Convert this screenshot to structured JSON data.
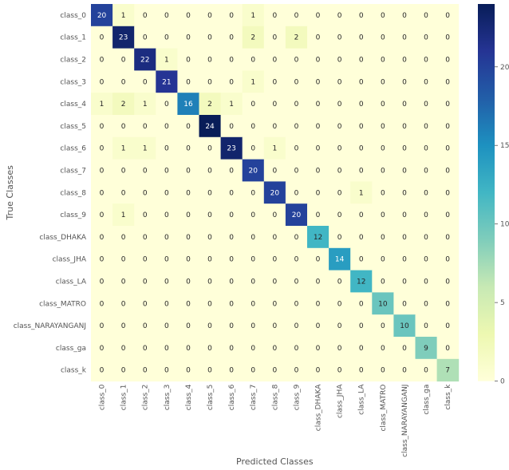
{
  "chart_data": {
    "type": "heatmap",
    "xlabel": "Predicted Classes",
    "ylabel": "True Classes",
    "x_categories": [
      "class_0",
      "class_1",
      "class_2",
      "class_3",
      "class_4",
      "class_5",
      "class_6",
      "class_7",
      "class_8",
      "class_9",
      "class_DHAKA",
      "class_JHA",
      "class_LA",
      "class_MATRO",
      "class_NARAYANGANJ",
      "class_ga",
      "class_k"
    ],
    "y_categories": [
      "class_0",
      "class_1",
      "class_2",
      "class_3",
      "class_4",
      "class_5",
      "class_6",
      "class_7",
      "class_8",
      "class_9",
      "class_DHAKA",
      "class_JHA",
      "class_LA",
      "class_MATRO",
      "class_NARAYANGANJ",
      "class_ga",
      "class_k"
    ],
    "values": [
      [
        20,
        1,
        0,
        0,
        0,
        0,
        0,
        1,
        0,
        0,
        0,
        0,
        0,
        0,
        0,
        0,
        0
      ],
      [
        0,
        23,
        0,
        0,
        0,
        0,
        0,
        2,
        0,
        2,
        0,
        0,
        0,
        0,
        0,
        0,
        0
      ],
      [
        0,
        0,
        22,
        1,
        0,
        0,
        0,
        0,
        0,
        0,
        0,
        0,
        0,
        0,
        0,
        0,
        0
      ],
      [
        0,
        0,
        0,
        21,
        0,
        0,
        0,
        1,
        0,
        0,
        0,
        0,
        0,
        0,
        0,
        0,
        0
      ],
      [
        1,
        2,
        1,
        0,
        16,
        2,
        1,
        0,
        0,
        0,
        0,
        0,
        0,
        0,
        0,
        0,
        0
      ],
      [
        0,
        0,
        0,
        0,
        0,
        24,
        0,
        0,
        0,
        0,
        0,
        0,
        0,
        0,
        0,
        0,
        0
      ],
      [
        0,
        1,
        1,
        0,
        0,
        0,
        23,
        0,
        1,
        0,
        0,
        0,
        0,
        0,
        0,
        0,
        0
      ],
      [
        0,
        0,
        0,
        0,
        0,
        0,
        0,
        20,
        0,
        0,
        0,
        0,
        0,
        0,
        0,
        0,
        0
      ],
      [
        0,
        0,
        0,
        0,
        0,
        0,
        0,
        0,
        20,
        0,
        0,
        0,
        1,
        0,
        0,
        0,
        0
      ],
      [
        0,
        1,
        0,
        0,
        0,
        0,
        0,
        0,
        0,
        20,
        0,
        0,
        0,
        0,
        0,
        0,
        0
      ],
      [
        0,
        0,
        0,
        0,
        0,
        0,
        0,
        0,
        0,
        0,
        12,
        0,
        0,
        0,
        0,
        0,
        0
      ],
      [
        0,
        0,
        0,
        0,
        0,
        0,
        0,
        0,
        0,
        0,
        0,
        14,
        0,
        0,
        0,
        0,
        0
      ],
      [
        0,
        0,
        0,
        0,
        0,
        0,
        0,
        0,
        0,
        0,
        0,
        0,
        12,
        0,
        0,
        0,
        0
      ],
      [
        0,
        0,
        0,
        0,
        0,
        0,
        0,
        0,
        0,
        0,
        0,
        0,
        0,
        10,
        0,
        0,
        0
      ],
      [
        0,
        0,
        0,
        0,
        0,
        0,
        0,
        0,
        0,
        0,
        0,
        0,
        0,
        0,
        10,
        0,
        0
      ],
      [
        0,
        0,
        0,
        0,
        0,
        0,
        0,
        0,
        0,
        0,
        0,
        0,
        0,
        0,
        0,
        9,
        0
      ],
      [
        0,
        0,
        0,
        0,
        0,
        0,
        0,
        0,
        0,
        0,
        0,
        0,
        0,
        0,
        0,
        0,
        7
      ]
    ],
    "vmin": 0,
    "vmax": 24,
    "colormap": "YlGnBu",
    "colorbar_ticks": [
      0,
      5,
      10,
      15,
      20
    ],
    "colorbar_tick_labels": [
      "0",
      "5",
      "10",
      "15",
      "20"
    ],
    "grid": false
  }
}
